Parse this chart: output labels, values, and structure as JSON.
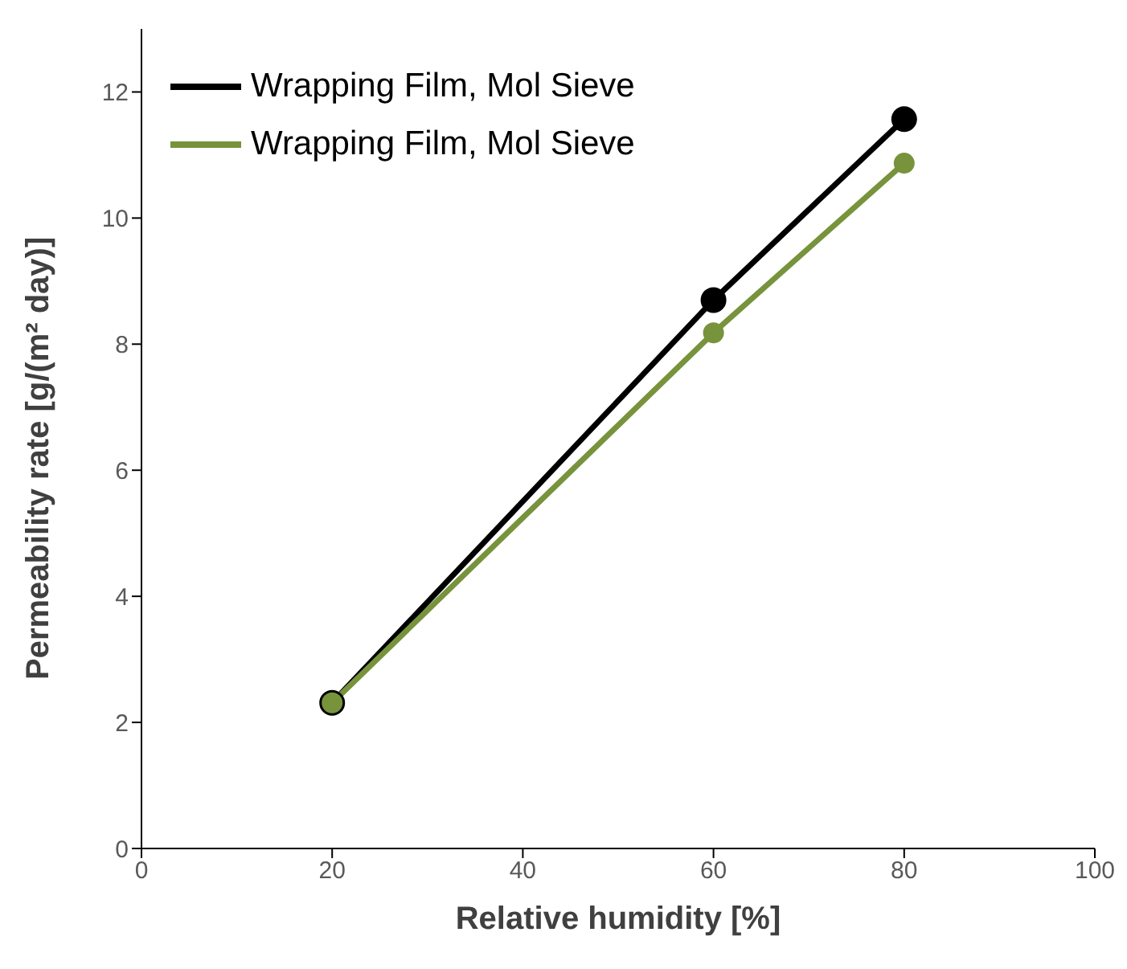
{
  "chart_data": {
    "type": "line",
    "xlabel": "Relative humidity [%]",
    "ylabel": "Permeability rate [g/(m² day)]",
    "x": [
      20,
      60,
      80
    ],
    "series": [
      {
        "name": "Wrapping Film, Mol Sieve",
        "color": "#000000",
        "values": [
          2.31,
          8.7,
          11.57
        ]
      },
      {
        "name": "Wrapping Film, Mol Sieve",
        "color": "#77933c",
        "values": [
          2.31,
          8.18,
          10.87
        ]
      }
    ],
    "xlim": [
      0,
      100
    ],
    "xticks": [
      0,
      20,
      40,
      60,
      80,
      100
    ],
    "ylim": [
      0,
      13
    ],
    "yticks": [
      0,
      2,
      4,
      6,
      8,
      10,
      12
    ],
    "grid": false,
    "legend": "top left",
    "marker": "circle",
    "line_style": "solid"
  }
}
